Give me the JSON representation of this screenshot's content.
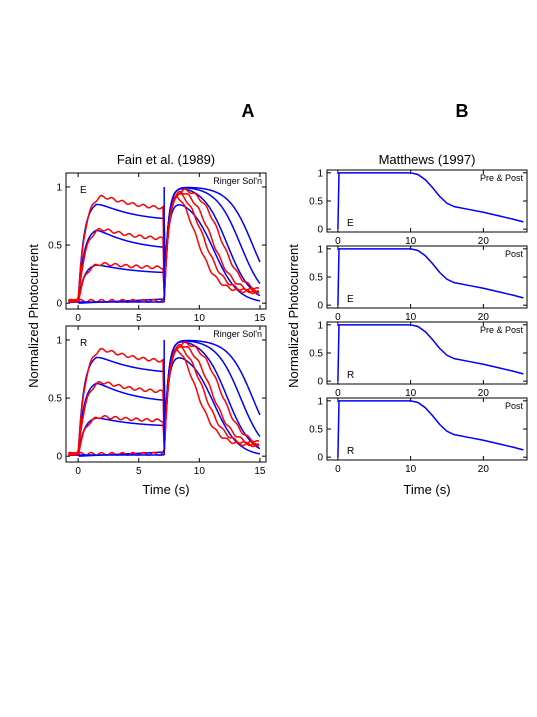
{
  "figure": {
    "panel_a_letter": "A",
    "panel_b_letter": "B",
    "panel_a_title": "Fain et al. (1989)",
    "panel_b_title": "Matthews (1997)",
    "ylabel": "Normalized Photocurrent",
    "xlabel": "Time (s)"
  },
  "colors": {
    "experiment": "#ff0000",
    "model": "#0000ff",
    "axes": "#000000"
  },
  "chart_data": [
    {
      "type": "line",
      "id": "fain-E",
      "title": "Fain et al. (1989)",
      "ylabel": "Normalized Photocurrent",
      "xlabel": "",
      "xlim": [
        -1,
        15.5
      ],
      "ylim": [
        -0.05,
        1.12
      ],
      "xticks": [
        0,
        5,
        10,
        15
      ],
      "yticks": [
        0,
        0.5,
        1
      ],
      "ytick_labels": [
        "0",
        "0.5",
        "1"
      ],
      "corner_label": "Ringer Sol'n",
      "inset_label": "E",
      "step_off": 7.1,
      "model_rise_tau": 0.45,
      "model_levels": [
        0.88,
        0.65,
        0.34,
        0.0
      ],
      "model_plateaus": [
        0.7,
        0.45,
        0.25,
        0.05
      ],
      "model_decay_mid": [
        11.2,
        12.3,
        13.4,
        14.4
      ],
      "model_decay_width": 1.0,
      "model_second_peaks": [
        0.87,
        1.0,
        1.0,
        1.0
      ],
      "experiment_levels": [
        0.95,
        0.66,
        0.35,
        0.0
      ],
      "experiment_plateaus": [
        0.8,
        0.54,
        0.3,
        0.02
      ],
      "experiment_decay_mid": [
        9.6,
        10.3,
        11.0,
        11.8
      ],
      "experiment_decay_width": 0.9,
      "experiment_tail": 0.09
    },
    {
      "type": "line",
      "id": "fain-R",
      "ylabel": "Normalized Photocurrent",
      "xlabel": "Time (s)",
      "xlim": [
        -1,
        15.5
      ],
      "ylim": [
        -0.05,
        1.12
      ],
      "xticks": [
        0,
        5,
        10,
        15
      ],
      "yticks": [
        0,
        0.5,
        1
      ],
      "ytick_labels": [
        "0",
        "0.5",
        "1"
      ],
      "corner_label": "Ringer Sol'n",
      "inset_label": "R",
      "step_off": 7.1,
      "model_rise_tau": 0.45,
      "model_levels": [
        0.88,
        0.65,
        0.34,
        0.0
      ],
      "model_plateaus": [
        0.7,
        0.45,
        0.25,
        0.05
      ],
      "model_decay_mid": [
        11.2,
        12.3,
        13.4,
        14.4
      ],
      "model_decay_width": 1.0,
      "model_second_peaks": [
        0.87,
        1.0,
        1.0,
        1.0
      ],
      "experiment_levels": [
        0.95,
        0.66,
        0.35,
        0.0
      ],
      "experiment_plateaus": [
        0.8,
        0.54,
        0.3,
        0.02
      ],
      "experiment_decay_mid": [
        9.6,
        10.3,
        11.0,
        11.8
      ],
      "experiment_decay_width": 0.9,
      "experiment_tail": 0.09
    },
    {
      "type": "line",
      "id": "matthews-1",
      "title": "Matthews (1997)",
      "xlim": [
        -1.5,
        26
      ],
      "ylim": [
        -0.05,
        1.05
      ],
      "xticks": [
        0,
        10,
        20
      ],
      "yticks": [
        0,
        0.5,
        1
      ],
      "ytick_labels": [
        "0",
        "0.5",
        "1"
      ],
      "corner_label": "Pre & Post",
      "inset_label": "E",
      "series": [
        {
          "x": [
            0,
            0.15,
            10,
            11,
            12,
            13,
            14,
            15,
            16,
            18,
            20,
            22,
            24,
            25.5
          ],
          "y": [
            0,
            1,
            1,
            0.97,
            0.88,
            0.74,
            0.58,
            0.46,
            0.4,
            0.35,
            0.3,
            0.24,
            0.18,
            0.13
          ]
        }
      ]
    },
    {
      "type": "line",
      "id": "matthews-2",
      "xlim": [
        -1.5,
        26
      ],
      "ylim": [
        -0.05,
        1.05
      ],
      "xticks": [
        0,
        10,
        20
      ],
      "yticks": [
        0,
        0.5,
        1
      ],
      "ytick_labels": [
        "0",
        "0.5",
        "1"
      ],
      "corner_label": "Post",
      "inset_label": "E",
      "series": [
        {
          "x": [
            0,
            0.15,
            10,
            11,
            12,
            13,
            14,
            15,
            16,
            18,
            20,
            22,
            24,
            25.5
          ],
          "y": [
            0,
            1,
            1,
            0.97,
            0.88,
            0.74,
            0.58,
            0.46,
            0.4,
            0.35,
            0.3,
            0.24,
            0.18,
            0.13
          ]
        }
      ]
    },
    {
      "type": "line",
      "id": "matthews-3",
      "ylabel": "Normalized Photocurrent",
      "xlim": [
        -1.5,
        26
      ],
      "ylim": [
        -0.05,
        1.05
      ],
      "xticks": [
        0,
        10,
        20
      ],
      "yticks": [
        0,
        0.5,
        1
      ],
      "ytick_labels": [
        "0",
        "0.5",
        "1"
      ],
      "corner_label": "Pre & Post",
      "inset_label": "R",
      "series": [
        {
          "x": [
            0,
            0.15,
            10,
            11,
            12,
            13,
            14,
            15,
            16,
            18,
            20,
            22,
            24,
            25.5
          ],
          "y": [
            0,
            1,
            1,
            0.97,
            0.88,
            0.74,
            0.58,
            0.46,
            0.4,
            0.35,
            0.3,
            0.24,
            0.18,
            0.13
          ]
        }
      ]
    },
    {
      "type": "line",
      "id": "matthews-4",
      "xlabel": "Time (s)",
      "xlim": [
        -1.5,
        26
      ],
      "ylim": [
        -0.05,
        1.05
      ],
      "xticks": [
        0,
        10,
        20
      ],
      "yticks": [
        0,
        0.5,
        1
      ],
      "ytick_labels": [
        "0",
        "0.5",
        "1"
      ],
      "corner_label": "Post",
      "inset_label": "R",
      "series": [
        {
          "x": [
            0,
            0.15,
            10,
            11,
            12,
            13,
            14,
            15,
            16,
            18,
            20,
            22,
            24,
            25.5
          ],
          "y": [
            0,
            1,
            1,
            0.97,
            0.88,
            0.74,
            0.58,
            0.46,
            0.4,
            0.35,
            0.3,
            0.24,
            0.18,
            0.13
          ]
        }
      ]
    }
  ]
}
